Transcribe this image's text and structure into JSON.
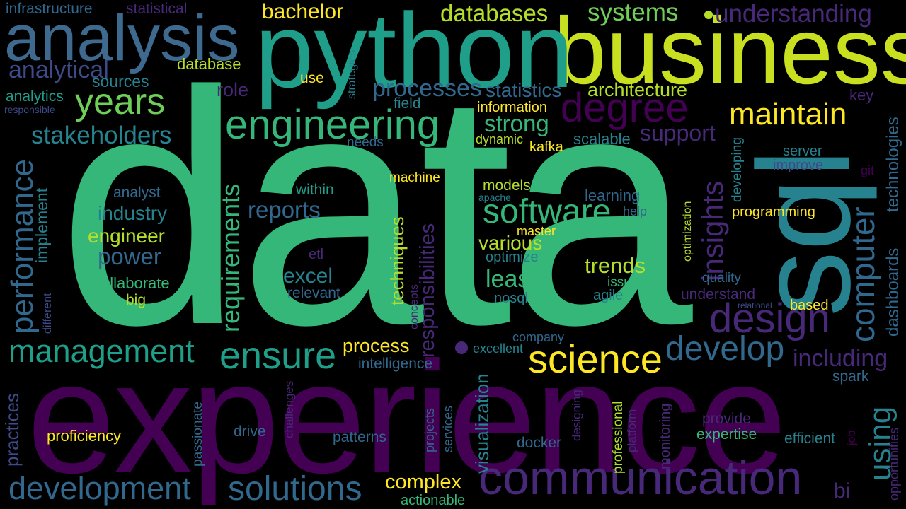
{
  "palette": {
    "background": "#000000",
    "deep_purple": "#440154",
    "purple": "#482878",
    "indigo": "#3e4a89",
    "blue": "#31688e",
    "teal": "#26828e",
    "sea_green": "#1f9e89",
    "green": "#35b779",
    "light_green": "#6ece58",
    "yellow_green": "#b5de2b",
    "yellow": "#fde725"
  },
  "words": {
    "data": "data",
    "experience": "experience",
    "business": "business",
    "python": "python",
    "sql": "sql",
    "analysis": "analysis",
    "communication": "communication",
    "engineering": "engineering",
    "science": "science",
    "degree": "degree",
    "design": "design",
    "management": "management",
    "development": "development",
    "solutions": "solutions",
    "ensure": "ensure",
    "develop": "develop",
    "software": "software",
    "years": "years",
    "maintain": "maintain",
    "computer": "computer",
    "requirements": "requirements",
    "performance": "performance",
    "insights": "insights",
    "using": "using",
    "stakeholders": "stakeholders",
    "processes": "processes",
    "understanding": "understanding",
    "systems": "systems",
    "databases": "databases",
    "analytical": "analytical",
    "infrastructure": "infrastructure",
    "statistical": "statistical",
    "bachelor": "bachelor",
    "database": "database",
    "role": "role",
    "statistics": "statistics",
    "architecture": "architecture",
    "strong": "strong",
    "support": "support",
    "information": "information",
    "key": "key",
    "analytics": "analytics",
    "responsible": "responsible",
    "sources": "sources",
    "use": "use",
    "strategies": "strategies",
    "field": "field",
    "needs": "needs",
    "dynamic": "dynamic",
    "kafka": "kafka",
    "scalable": "scalable",
    "server": "server",
    "improve": "improve",
    "git": "git",
    "developing": "developing",
    "technologies": "technologies",
    "dashboards": "dashboards",
    "programming": "programming",
    "help": "help",
    "learning": "learning",
    "models": "models",
    "apache": "apache",
    "machine": "machine",
    "within": "within",
    "reports": "reports",
    "analyst": "analyst",
    "industry": "industry",
    "engineer": "engineer",
    "power": "power",
    "collaborate": "collaborate",
    "big": "big",
    "implement": "implement",
    "different": "different",
    "excel": "excel",
    "relevant": "relevant",
    "etl": "etl",
    "master": "master",
    "various": "various",
    "optimize": "optimize",
    "least": "least",
    "nosql": "nosql",
    "trends": "trends",
    "issues": "issues",
    "agile": "agile",
    "optimization": "optimization",
    "quality": "quality",
    "understand": "understand",
    "relational": "relational",
    "based": "based",
    "techniques": "techniques",
    "responsibilities": "responsibilities",
    "concepts": "concepts",
    "company": "company",
    "excellent": "excellent",
    "process": "process",
    "intelligence": "intelligence",
    "visualization": "visualization",
    "including": "including",
    "spark": "spark",
    "practices": "practices",
    "passionate": "passionate",
    "proficiency": "proficiency",
    "drive": "drive",
    "challenges": "challenges",
    "projects": "projects",
    "services": "services",
    "patterns": "patterns",
    "docker": "docker",
    "designing": "designing",
    "professional": "professional",
    "platform": "platform",
    "monitoring": "monitoring",
    "provide": "provide",
    "expertise": "expertise",
    "efficient": "efficient",
    "job": "job",
    "opportunities": "opportunities",
    "complex": "complex",
    "actionable": "actionable",
    "bi": "bi"
  }
}
